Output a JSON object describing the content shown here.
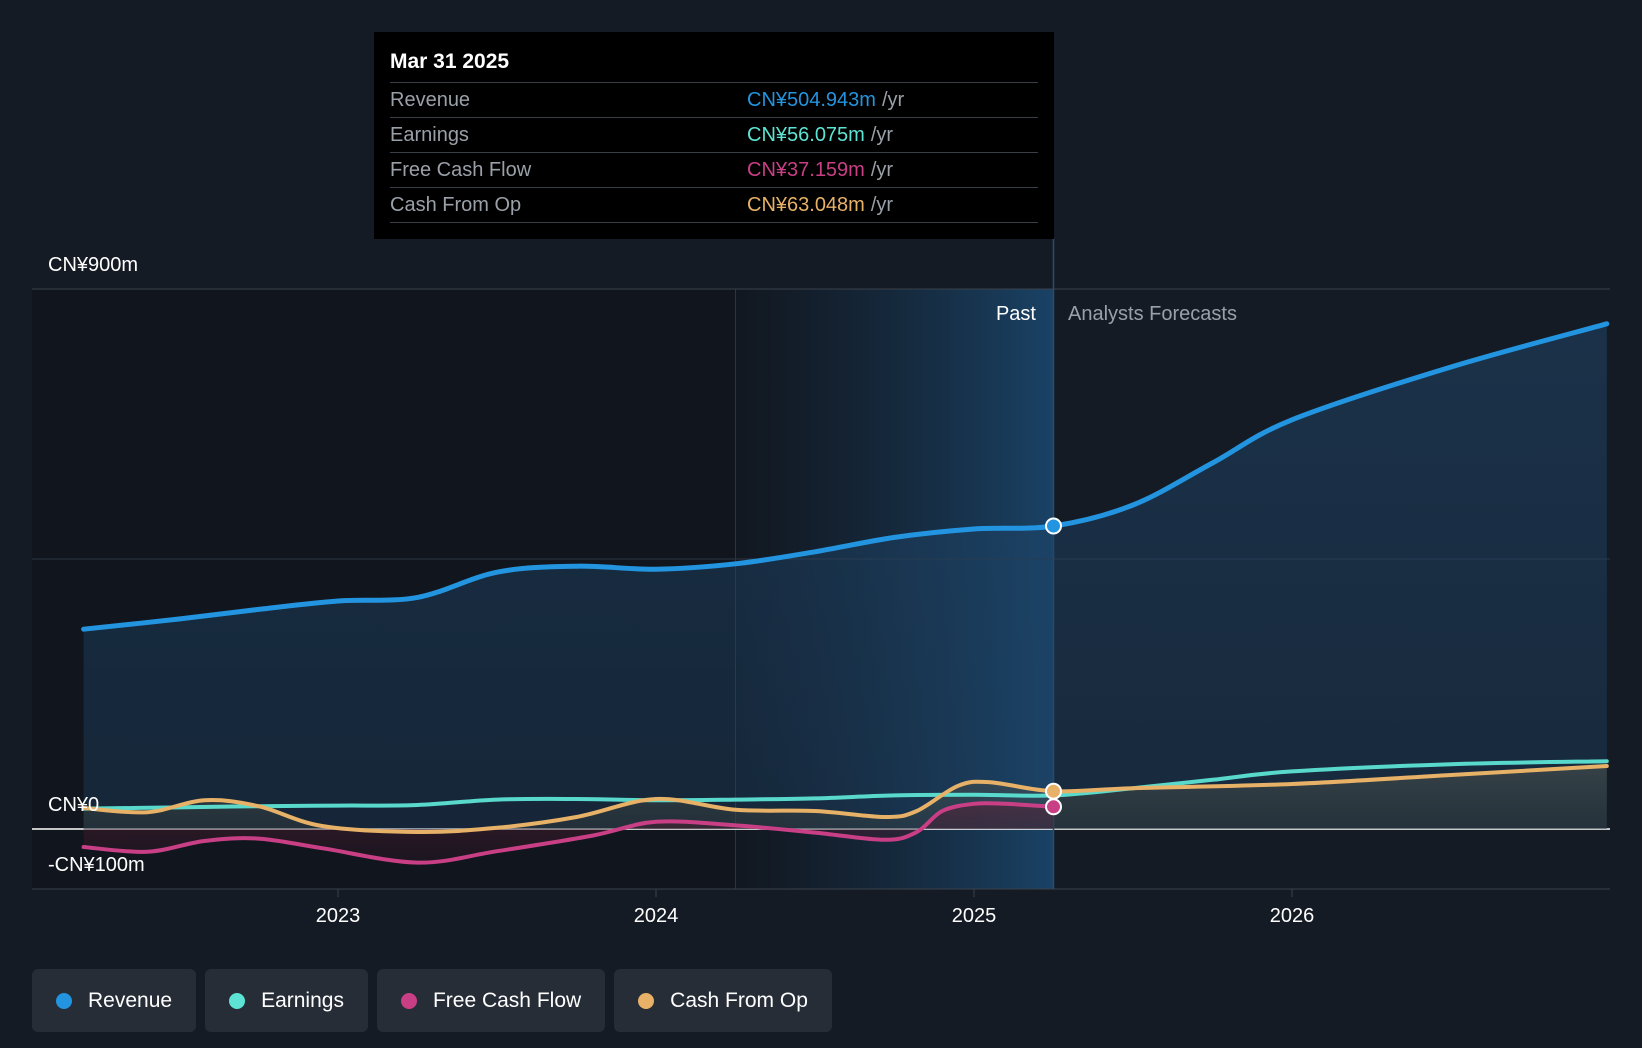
{
  "chart_data": {
    "type": "line",
    "title": "",
    "xlabel": "",
    "ylabel": "",
    "ylim": [
      -100,
      900
    ],
    "y_axis_labels": [
      "CN¥900m",
      "CN¥0",
      "-CN¥100m"
    ],
    "x_ticks": [
      {
        "label": "2023",
        "t": 2023.0
      },
      {
        "label": "2024",
        "t": 2024.0
      },
      {
        "label": "2025",
        "t": 2025.0
      },
      {
        "label": "2026",
        "t": 2026.0
      }
    ],
    "past_label": "Past",
    "forecast_label": "Analysts Forecasts",
    "divider_t": 2025.25,
    "highlight_start_t": 2024.25,
    "series": [
      {
        "name": "Revenue",
        "color": "#2394df",
        "points": [
          [
            2022.2,
            333
          ],
          [
            2022.5,
            350
          ],
          [
            2022.75,
            366
          ],
          [
            2023.0,
            380
          ],
          [
            2023.25,
            386
          ],
          [
            2023.5,
            428
          ],
          [
            2023.75,
            438
          ],
          [
            2024.0,
            433
          ],
          [
            2024.25,
            442
          ],
          [
            2024.5,
            462
          ],
          [
            2024.75,
            486
          ],
          [
            2025.0,
            500
          ],
          [
            2025.25,
            505
          ],
          [
            2025.5,
            540
          ],
          [
            2025.75,
            610
          ],
          [
            2026.0,
            682
          ],
          [
            2026.5,
            770
          ],
          [
            2026.99,
            842
          ]
        ]
      },
      {
        "name": "Earnings",
        "color": "#5de3d3",
        "points": [
          [
            2022.2,
            34
          ],
          [
            2022.5,
            36
          ],
          [
            2022.75,
            38
          ],
          [
            2023.0,
            39
          ],
          [
            2023.25,
            40
          ],
          [
            2023.5,
            49
          ],
          [
            2023.75,
            50
          ],
          [
            2024.0,
            48
          ],
          [
            2024.25,
            49
          ],
          [
            2024.5,
            51
          ],
          [
            2024.75,
            56
          ],
          [
            2025.0,
            57
          ],
          [
            2025.25,
            56
          ],
          [
            2025.5,
            68
          ],
          [
            2025.75,
            82
          ],
          [
            2026.0,
            96
          ],
          [
            2026.5,
            108
          ],
          [
            2026.99,
            113
          ]
        ]
      },
      {
        "name": "Free Cash Flow",
        "color": "#c93f86",
        "points": [
          [
            2022.2,
            -30
          ],
          [
            2022.4,
            -38
          ],
          [
            2022.58,
            -20
          ],
          [
            2022.75,
            -16
          ],
          [
            2022.95,
            -32
          ],
          [
            2023.25,
            -56
          ],
          [
            2023.5,
            -37
          ],
          [
            2023.8,
            -11
          ],
          [
            2024.0,
            12
          ],
          [
            2024.25,
            6
          ],
          [
            2024.5,
            -6
          ],
          [
            2024.72,
            -18
          ],
          [
            2024.82,
            -5
          ],
          [
            2024.9,
            30
          ],
          [
            2025.0,
            42
          ],
          [
            2025.1,
            42
          ],
          [
            2025.25,
            37
          ]
        ]
      },
      {
        "name": "Cash From Op",
        "color": "#e7b167",
        "points": [
          [
            2022.2,
            35
          ],
          [
            2022.4,
            28
          ],
          [
            2022.58,
            48
          ],
          [
            2022.75,
            38
          ],
          [
            2022.95,
            5
          ],
          [
            2023.25,
            -5
          ],
          [
            2023.5,
            2
          ],
          [
            2023.75,
            20
          ],
          [
            2024.0,
            50
          ],
          [
            2024.25,
            32
          ],
          [
            2024.5,
            30
          ],
          [
            2024.72,
            20
          ],
          [
            2024.82,
            30
          ],
          [
            2024.95,
            72
          ],
          [
            2025.05,
            78
          ],
          [
            2025.25,
            63
          ],
          [
            2025.5,
            68
          ],
          [
            2026.0,
            75
          ],
          [
            2026.5,
            90
          ],
          [
            2026.99,
            105
          ]
        ]
      }
    ],
    "tooltip": {
      "date": "Mar 31 2025",
      "unit": "/yr",
      "rows": [
        {
          "name": "Revenue",
          "value": "CN¥504.943m",
          "color": "#2394df"
        },
        {
          "name": "Earnings",
          "value": "CN¥56.075m",
          "color": "#5de3d3"
        },
        {
          "name": "Free Cash Flow",
          "value": "CN¥37.159m",
          "color": "#c93f86"
        },
        {
          "name": "Cash From Op",
          "value": "CN¥63.048m",
          "color": "#e7b167"
        }
      ]
    }
  },
  "legend": [
    {
      "label": "Revenue",
      "color": "#2394df"
    },
    {
      "label": "Earnings",
      "color": "#5de3d3"
    },
    {
      "label": "Free Cash Flow",
      "color": "#c93f86"
    },
    {
      "label": "Cash From Op",
      "color": "#e7b167"
    }
  ]
}
